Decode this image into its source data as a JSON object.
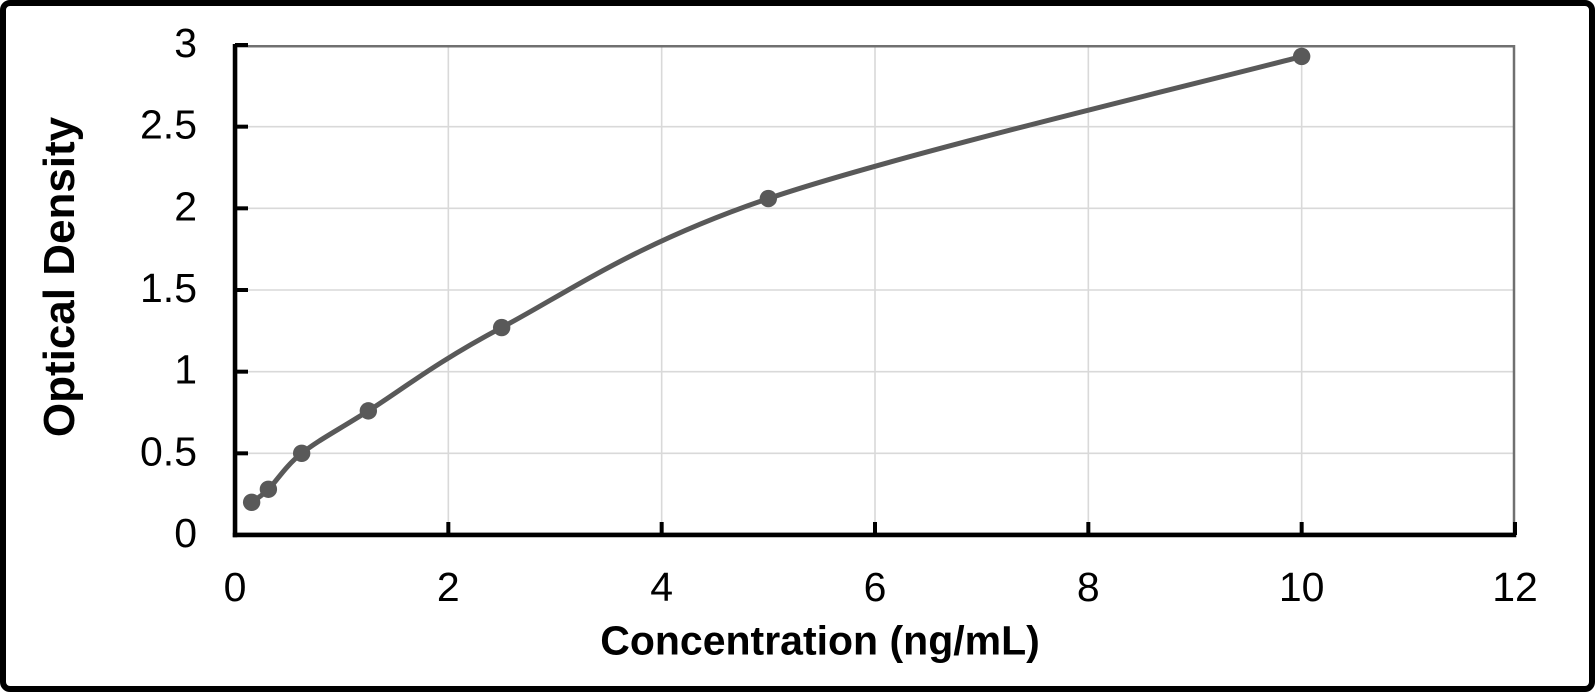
{
  "chart_data": {
    "type": "scatter",
    "line_style": "smooth",
    "title": "",
    "xlabel": "Concentration (ng/mL)",
    "ylabel": "Optical Density",
    "x": [
      0.156,
      0.313,
      0.625,
      1.25,
      2.5,
      5,
      10
    ],
    "y": [
      0.2,
      0.28,
      0.5,
      0.76,
      1.27,
      2.06,
      2.93
    ],
    "xlim": [
      0,
      12
    ],
    "ylim": [
      0,
      3
    ],
    "x_tick_values": [
      0,
      2,
      4,
      6,
      8,
      10,
      12
    ],
    "x_tick_labels": [
      "0",
      "2",
      "4",
      "6",
      "8",
      "10",
      "12"
    ],
    "y_tick_values": [
      0,
      0.5,
      1,
      1.5,
      2,
      2.5,
      3
    ],
    "y_tick_labels": [
      "0",
      "0.5",
      "1",
      "1.5",
      "2",
      "2.5",
      "3"
    ],
    "grid": {
      "vertical": true,
      "horizontal": true
    },
    "legend": "none",
    "colors": {
      "curve": "#595959",
      "marker": "#595959",
      "gridline": "#d9d9d9",
      "axis": "#000000",
      "plot_border": "#707070",
      "tick_text": "#000000",
      "frame": "#000000",
      "background": "#ffffff"
    }
  }
}
